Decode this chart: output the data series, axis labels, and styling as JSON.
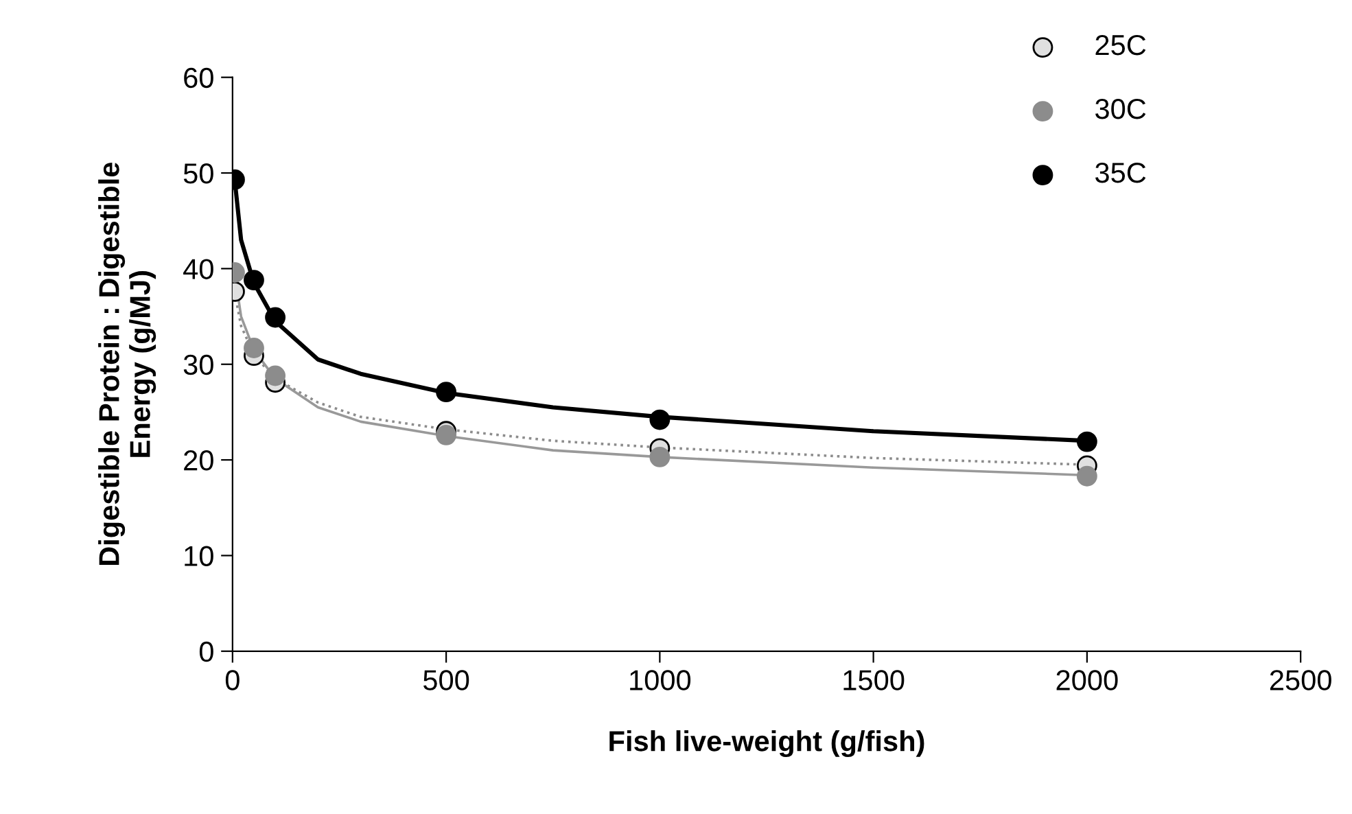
{
  "chart_data": {
    "type": "scatter",
    "xlabel": "Fish live-weight (g/fish)",
    "ylabel": "Digestible Protein : Digestible\nEnergy (g/MJ)",
    "xlim": [
      0,
      2500
    ],
    "xticks": [
      0,
      500,
      1000,
      1500,
      2000,
      2500
    ],
    "ylim": [
      0,
      60
    ],
    "yticks": [
      0,
      10,
      20,
      30,
      40,
      50,
      60
    ],
    "grid": false,
    "legend": "top right",
    "marker": "circle",
    "series": [
      {
        "name": "25C",
        "color": "#e0e0e0",
        "x": [
          5,
          50,
          100,
          500,
          1000,
          2000
        ],
        "values": [
          37.6,
          30.9,
          28.1,
          23.0,
          21.2,
          19.4
        ]
      },
      {
        "name": "30C",
        "color": "#8c8c8c",
        "x": [
          5,
          50,
          100,
          500,
          1000,
          2000
        ],
        "values": [
          39.6,
          31.7,
          28.8,
          22.6,
          20.3,
          18.3
        ]
      },
      {
        "name": "35C",
        "color": "#000000",
        "x": [
          5,
          50,
          100,
          500,
          1000,
          2000
        ],
        "values": [
          49.3,
          38.8,
          34.9,
          27.1,
          24.2,
          21.9
        ]
      },
      {
        "type": "line",
        "color": "#8c8c8c",
        "line_style": "dotted",
        "marker": "none",
        "x": [
          5,
          20,
          50,
          100,
          200,
          300,
          500,
          750,
          1000,
          1500,
          2000
        ],
        "values": [
          37.5,
          34,
          31,
          28.5,
          26,
          24.5,
          23.2,
          22,
          21.3,
          20.2,
          19.5
        ]
      },
      {
        "type": "line",
        "color": "#999999",
        "line_style": "solid",
        "marker": "none",
        "x": [
          5,
          20,
          50,
          100,
          200,
          300,
          500,
          750,
          1000,
          1500,
          2000
        ],
        "values": [
          39.5,
          35,
          31.5,
          28.5,
          25.5,
          24,
          22.5,
          21,
          20.3,
          19.2,
          18.4
        ]
      },
      {
        "type": "line",
        "color": "#000000",
        "line_style": "solid",
        "marker": "none",
        "x": [
          5,
          20,
          50,
          100,
          200,
          300,
          500,
          750,
          1000,
          1500,
          2000
        ],
        "values": [
          49.3,
          43,
          38.5,
          34.5,
          30.5,
          29,
          27,
          25.5,
          24.5,
          23,
          22
        ]
      }
    ]
  }
}
